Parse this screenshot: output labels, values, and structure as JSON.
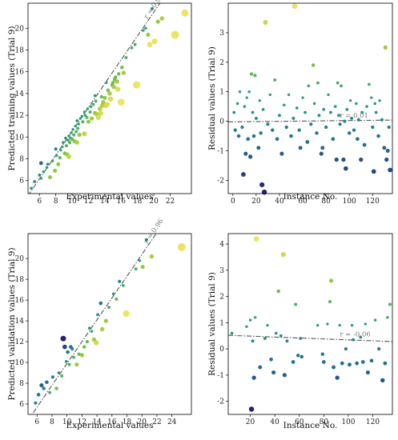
{
  "chart_data": [
    {
      "type": "scatter",
      "xlabel": "Experimental values",
      "ylabel": "Predicted training values (Trial 9)",
      "xlim": [
        4.6,
        24.6
      ],
      "ylim": [
        4.8,
        22.3
      ],
      "xticks": [
        6,
        8,
        10,
        12,
        14,
        16,
        18,
        20,
        22
      ],
      "yticks": [
        6,
        8,
        10,
        12,
        14,
        16,
        18,
        20
      ],
      "reference_line": {
        "kind": "diagonal",
        "slope": 1.095,
        "intercept": -0.42,
        "label": "r = 0.97"
      },
      "points": [
        [
          5.0,
          5.3
        ],
        [
          5.4,
          5.9
        ],
        [
          6.0,
          6.5
        ],
        [
          6.2,
          7.6
        ],
        [
          6.5,
          6.8
        ],
        [
          6.9,
          7.2
        ],
        [
          7.3,
          6.3
        ],
        [
          7.6,
          7.8
        ],
        [
          7.9,
          6.9
        ],
        [
          8.1,
          8.3
        ],
        [
          8.3,
          7.5
        ],
        [
          8.5,
          8.1
        ],
        [
          8.6,
          8.8
        ],
        [
          8.8,
          9.1
        ],
        [
          8.9,
          9.5
        ],
        [
          9.1,
          8.5
        ],
        [
          9.2,
          9.9
        ],
        [
          9.3,
          9.2
        ],
        [
          9.4,
          8.4
        ],
        [
          9.5,
          9.7
        ],
        [
          9.6,
          10.1
        ],
        [
          9.7,
          9.5
        ],
        [
          9.8,
          9.9
        ],
        [
          9.9,
          10.4
        ],
        [
          10.0,
          9.8
        ],
        [
          10.1,
          10.7
        ],
        [
          10.2,
          10.2
        ],
        [
          10.3,
          9.6
        ],
        [
          10.4,
          11.0
        ],
        [
          10.5,
          10.5
        ],
        [
          10.6,
          11.5
        ],
        [
          10.7,
          10.8
        ],
        [
          10.8,
          11.2
        ],
        [
          10.9,
          10.2
        ],
        [
          11.0,
          11.7
        ],
        [
          11.2,
          11.9
        ],
        [
          11.3,
          11.4
        ],
        [
          11.5,
          12.3
        ],
        [
          11.6,
          12.0
        ],
        [
          11.8,
          11.8
        ],
        [
          11.9,
          12.6
        ],
        [
          12.0,
          11.4
        ],
        [
          12.2,
          12.3
        ],
        [
          12.3,
          12.8
        ],
        [
          12.4,
          11.7
        ],
        [
          12.6,
          13.0
        ],
        [
          12.8,
          12.2
        ],
        [
          12.9,
          13.3
        ],
        [
          13.0,
          12.1
        ],
        [
          13.2,
          11.8
        ],
        [
          13.4,
          12.6
        ],
        [
          13.5,
          12.2
        ],
        [
          13.7,
          12.9
        ],
        [
          13.8,
          13.2
        ],
        [
          14.0,
          13.6
        ],
        [
          14.1,
          12.9
        ],
        [
          14.3,
          13.0
        ],
        [
          14.4,
          14.3
        ],
        [
          14.6,
          14.0
        ],
        [
          14.7,
          13.5
        ],
        [
          14.9,
          14.8
        ],
        [
          15.0,
          15.0
        ],
        [
          15.1,
          14.6
        ],
        [
          15.2,
          15.3
        ],
        [
          15.3,
          15.5
        ],
        [
          15.5,
          15.1
        ],
        [
          15.7,
          15.8
        ],
        [
          16.0,
          13.2
        ],
        [
          16.1,
          16.4
        ],
        [
          16.3,
          15.9
        ],
        [
          16.6,
          17.3
        ],
        [
          17.3,
          18.2
        ],
        [
          17.9,
          14.8
        ],
        [
          18.7,
          19.8
        ],
        [
          19.0,
          20.0
        ],
        [
          19.3,
          19.4
        ],
        [
          19.5,
          18.5
        ],
        [
          19.8,
          21.8
        ],
        [
          20.1,
          18.8
        ],
        [
          20.5,
          20.6
        ],
        [
          21.0,
          20.9
        ],
        [
          22.6,
          19.4
        ],
        [
          23.8,
          21.4
        ],
        [
          6.2,
          6.2
        ],
        [
          7.0,
          7.5
        ],
        [
          8.0,
          8.9
        ],
        [
          9.6,
          8.2
        ],
        [
          10.6,
          9.5
        ],
        [
          11.5,
          10.3
        ],
        [
          12.8,
          13.8
        ],
        [
          13.6,
          13.7
        ],
        [
          14.2,
          15.0
        ],
        [
          15.6,
          14.4
        ],
        [
          17.7,
          18.5
        ]
      ]
    },
    {
      "type": "scatter",
      "xlabel": "Instance No.",
      "ylabel": "Residual values (Trial 9)",
      "xlim": [
        -4,
        137
      ],
      "ylim": [
        -2.45,
        4.0
      ],
      "xticks": [
        0,
        20,
        40,
        60,
        80,
        100,
        120
      ],
      "yticks": [
        -2,
        -1,
        0,
        1,
        2,
        3
      ],
      "reference_line": {
        "kind": "fit",
        "y_start": -0.02,
        "y_end": 0.04,
        "label": "r = 0.01"
      },
      "points": [
        [
          1,
          0.3
        ],
        [
          2,
          -0.3
        ],
        [
          4,
          0.6
        ],
        [
          5,
          -0.5
        ],
        [
          6,
          1.0
        ],
        [
          8,
          -0.2
        ],
        [
          9,
          -1.8
        ],
        [
          10,
          0.5
        ],
        [
          11,
          -1.1
        ],
        [
          12,
          0.8
        ],
        [
          13,
          -0.6
        ],
        [
          14,
          1.0
        ],
        [
          15,
          -1.2
        ],
        [
          16,
          1.6
        ],
        [
          17,
          0.3
        ],
        [
          18,
          -0.5
        ],
        [
          19,
          1.55
        ],
        [
          20,
          0.1
        ],
        [
          22,
          -0.9
        ],
        [
          23,
          0.7
        ],
        [
          24,
          -0.4
        ],
        [
          25,
          -2.15
        ],
        [
          26,
          0.4
        ],
        [
          27,
          -2.4
        ],
        [
          28,
          3.35
        ],
        [
          30,
          -0.1
        ],
        [
          32,
          0.9
        ],
        [
          34,
          -0.3
        ],
        [
          36,
          1.4
        ],
        [
          38,
          -0.6
        ],
        [
          40,
          0.2
        ],
        [
          42,
          -1.1
        ],
        [
          44,
          0.55
        ],
        [
          46,
          -0.2
        ],
        [
          48,
          0.9
        ],
        [
          50,
          -0.5
        ],
        [
          52,
          0.1
        ],
        [
          53,
          3.9
        ],
        [
          55,
          0.45
        ],
        [
          57,
          -0.3
        ],
        [
          58,
          -0.9
        ],
        [
          60,
          0.8
        ],
        [
          62,
          0.3
        ],
        [
          64,
          -0.7
        ],
        [
          65,
          1.2
        ],
        [
          67,
          -0.1
        ],
        [
          69,
          1.9
        ],
        [
          70,
          0.6
        ],
        [
          72,
          -0.4
        ],
        [
          73,
          1.3
        ],
        [
          74,
          0.2
        ],
        [
          76,
          -1.1
        ],
        [
          77,
          -0.9
        ],
        [
          78,
          0.4
        ],
        [
          80,
          -0.2
        ],
        [
          82,
          0.9
        ],
        [
          84,
          0.3
        ],
        [
          86,
          -0.6
        ],
        [
          88,
          0.5
        ],
        [
          89,
          -1.3
        ],
        [
          90,
          1.3
        ],
        [
          91,
          0.2
        ],
        [
          92,
          -0.1
        ],
        [
          93,
          1.2
        ],
        [
          95,
          -1.3
        ],
        [
          96,
          0.0
        ],
        [
          97,
          -1.6
        ],
        [
          98,
          0.4
        ],
        [
          100,
          -0.4
        ],
        [
          101,
          0.7
        ],
        [
          102,
          0.1
        ],
        [
          104,
          -0.3
        ],
        [
          106,
          0.6
        ],
        [
          107,
          -0.6
        ],
        [
          108,
          0.05
        ],
        [
          110,
          -1.3
        ],
        [
          111,
          0.3
        ],
        [
          113,
          -0.8
        ],
        [
          115,
          0.5
        ],
        [
          117,
          1.25
        ],
        [
          119,
          0.8
        ],
        [
          120,
          -0.2
        ],
        [
          121,
          -1.7
        ],
        [
          122,
          0.6
        ],
        [
          123,
          0.3
        ],
        [
          125,
          -0.5
        ],
        [
          126,
          0.7
        ],
        [
          128,
          0.05
        ],
        [
          130,
          -0.9
        ],
        [
          131,
          2.5
        ],
        [
          132,
          -1.3
        ],
        [
          133,
          -1.0
        ],
        [
          134,
          -0.2
        ],
        [
          135,
          -1.65
        ]
      ]
    },
    {
      "type": "scatter",
      "xlabel": "Experimental values",
      "ylabel": "Predicted validation values (Trial 9)",
      "xlim": [
        4.8,
        26.6
      ],
      "ylim": [
        5.0,
        22.4
      ],
      "xticks": [
        6,
        8,
        10,
        12,
        14,
        16,
        18,
        20,
        22,
        24
      ],
      "yticks": [
        6,
        8,
        10,
        12,
        14,
        16,
        18,
        20
      ],
      "reference_line": {
        "kind": "diagonal",
        "slope": 1.05,
        "intercept": -0.6,
        "label": "r = 0.96"
      },
      "points": [
        [
          5.8,
          6.1
        ],
        [
          6.2,
          6.9
        ],
        [
          6.6,
          7.8
        ],
        [
          6.9,
          7.5
        ],
        [
          7.3,
          8.1
        ],
        [
          7.7,
          7.1
        ],
        [
          8.1,
          8.6
        ],
        [
          8.6,
          7.5
        ],
        [
          8.9,
          9.0
        ],
        [
          9.3,
          8.7
        ],
        [
          9.5,
          12.3
        ],
        [
          9.7,
          11.5
        ],
        [
          9.9,
          10.1
        ],
        [
          10.1,
          11.0
        ],
        [
          10.3,
          9.8
        ],
        [
          10.5,
          11.5
        ],
        [
          10.7,
          11.3
        ],
        [
          10.9,
          10.5
        ],
        [
          11.3,
          9.8
        ],
        [
          11.6,
          10.8
        ],
        [
          12.0,
          10.7
        ],
        [
          12.3,
          11.5
        ],
        [
          12.7,
          12.0
        ],
        [
          13.0,
          13.3
        ],
        [
          13.3,
          13.0
        ],
        [
          13.6,
          12.2
        ],
        [
          13.9,
          11.9
        ],
        [
          14.1,
          14.6
        ],
        [
          14.5,
          15.7
        ],
        [
          14.7,
          13.2
        ],
        [
          15.2,
          14.0
        ],
        [
          15.6,
          15.3
        ],
        [
          16.2,
          16.6
        ],
        [
          16.6,
          16.1
        ],
        [
          17.0,
          17.8
        ],
        [
          17.5,
          17.4
        ],
        [
          17.9,
          14.7
        ],
        [
          19.2,
          19.0
        ],
        [
          19.7,
          19.8
        ],
        [
          20.1,
          19.2
        ],
        [
          20.6,
          21.8
        ],
        [
          21.3,
          20.2
        ],
        [
          25.3,
          21.1
        ]
      ]
    },
    {
      "type": "scatter",
      "xlabel": "Instance No.",
      "ylabel": "Residual values (Trial 9)",
      "xlim": [
        2,
        136
      ],
      "ylim": [
        -2.5,
        4.4
      ],
      "xticks": [
        20,
        40,
        60,
        80,
        100,
        120
      ],
      "yticks": [
        -2,
        -1,
        0,
        1,
        2,
        3,
        4
      ],
      "reference_line": {
        "kind": "fit",
        "y_start": 0.52,
        "y_end": 0.28,
        "label": "r = -0.06"
      },
      "points": [
        [
          5,
          0.6
        ],
        [
          17,
          0.85
        ],
        [
          20,
          1.1
        ],
        [
          21,
          -2.3
        ],
        [
          22,
          0.3
        ],
        [
          23,
          -1.1
        ],
        [
          24,
          1.2
        ],
        [
          25,
          4.2
        ],
        [
          28,
          -0.7
        ],
        [
          32,
          0.4
        ],
        [
          34,
          0.9
        ],
        [
          37,
          -0.4
        ],
        [
          39,
          -0.9
        ],
        [
          41,
          0.6
        ],
        [
          43,
          2.2
        ],
        [
          45,
          0.5
        ],
        [
          47,
          3.6
        ],
        [
          48,
          -1.0
        ],
        [
          50,
          0.3
        ],
        [
          55,
          -0.5
        ],
        [
          57,
          1.7
        ],
        [
          59,
          -0.25
        ],
        [
          61,
          0.4
        ],
        [
          62,
          -0.3
        ],
        [
          75,
          0.9
        ],
        [
          79,
          -0.2
        ],
        [
          80,
          -0.5
        ],
        [
          83,
          0.95
        ],
        [
          85,
          1.8
        ],
        [
          86,
          2.6
        ],
        [
          88,
          -0.7
        ],
        [
          91,
          -1.1
        ],
        [
          93,
          0.9
        ],
        [
          95,
          -0.55
        ],
        [
          98,
          0.0
        ],
        [
          101,
          -0.6
        ],
        [
          103,
          0.9
        ],
        [
          104,
          0.35
        ],
        [
          107,
          -0.55
        ],
        [
          110,
          0.45
        ],
        [
          112,
          -0.5
        ],
        [
          114,
          0.95
        ],
        [
          116,
          -0.9
        ],
        [
          119,
          -0.45
        ],
        [
          122,
          1.1
        ],
        [
          125,
          0.0
        ],
        [
          128,
          -1.2
        ],
        [
          130,
          -0.55
        ],
        [
          132,
          1.2
        ],
        [
          134,
          1.7
        ]
      ]
    }
  ]
}
